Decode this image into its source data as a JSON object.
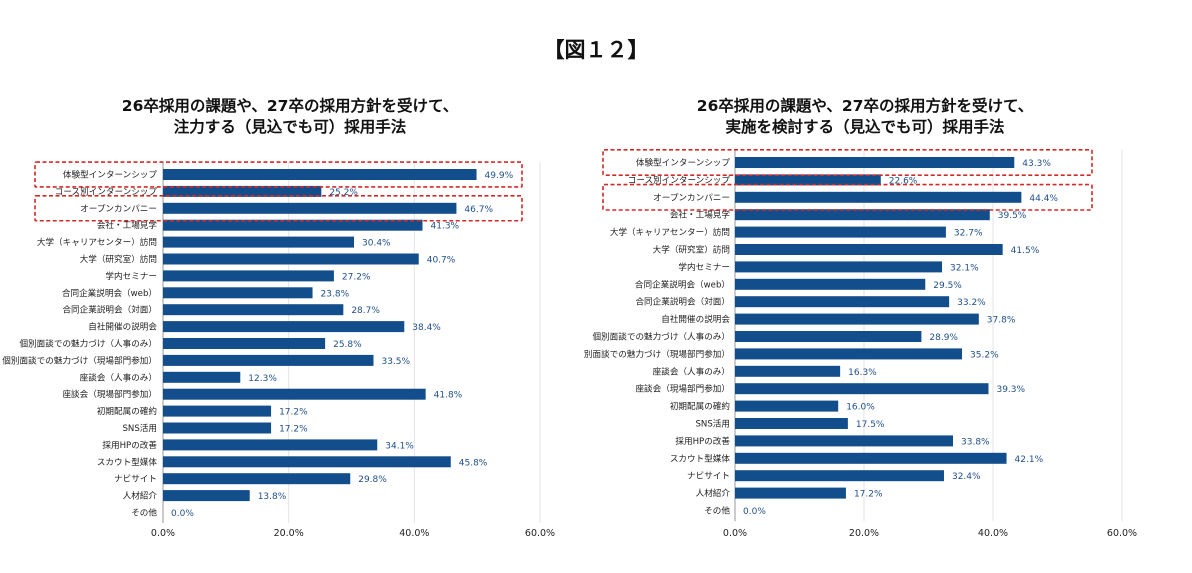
{
  "figure_title": "【図１２】",
  "chart_data": [
    {
      "type": "bar",
      "orientation": "horizontal",
      "title_lines": [
        "26卒採用の課題や、27卒の採用方針を受けて、",
        "注力する（見込でも可）採用手法"
      ],
      "categories": [
        "体験型インターンシップ",
        "コース別インターンシップ",
        "オープンカンパニー",
        "会社・工場見学",
        "大学（キャリアセンター）訪問",
        "大学（研究室）訪問",
        "学内セミナー",
        "合同企業説明会（web）",
        "合同企業説明会（対面）",
        "自社開催の説明会",
        "個別面談での魅力づけ（人事のみ）",
        "個別面談での魅力づけ（現場部門参加）",
        "座談会（人事のみ）",
        "座談会（現場部門参加）",
        "初期配属の確約",
        "SNS活用",
        "採用HPの改善",
        "スカウト型媒体",
        "ナビサイト",
        "人材紹介",
        "その他"
      ],
      "values": [
        49.9,
        25.2,
        46.7,
        41.3,
        30.4,
        40.7,
        27.2,
        23.8,
        28.7,
        38.4,
        25.8,
        33.5,
        12.3,
        41.8,
        17.2,
        17.2,
        34.1,
        45.8,
        29.8,
        13.8,
        0.0
      ],
      "value_labels": [
        "49.9%",
        "25.2%",
        "46.7%",
        "41.3%",
        "30.4%",
        "40.7%",
        "27.2%",
        "23.8%",
        "28.7%",
        "38.4%",
        "25.8%",
        "33.5%",
        "12.3%",
        "41.8%",
        "17.2%",
        "17.2%",
        "34.1%",
        "45.8%",
        "29.8%",
        "13.8%",
        "0.0%"
      ],
      "x_ticks": [
        "0.0%",
        "20.0%",
        "40.0%",
        "60.0%"
      ],
      "xlim": [
        0,
        60
      ],
      "grid": true,
      "highlighted_categories": [
        0,
        2
      ],
      "bar_color": "#134e8c",
      "highlight_color": "#d22a2a"
    },
    {
      "type": "bar",
      "orientation": "horizontal",
      "title_lines": [
        "26卒採用の課題や、27卒の採用方針を受けて、",
        "実施を検討する（見込でも可）採用手法"
      ],
      "categories": [
        "体験型インターンシップ",
        "コース別インターンシップ",
        "オープンカンパニー",
        "会社・工場見学",
        "大学（キャリアセンター）訪問",
        "大学（研究室）訪問",
        "学内セミナー",
        "合同企業説明会（web）",
        "合同企業説明会（対面）",
        "自社開催の説明会",
        "個別面談での魅力づけ（人事のみ）",
        "別面談での魅力づけ（現場部門参加）",
        "座談会（人事のみ）",
        "座談会（現場部門参加）",
        "初期配属の確約",
        "SNS活用",
        "採用HPの改善",
        "スカウト型媒体",
        "ナビサイト",
        "人材紹介",
        "その他"
      ],
      "values": [
        43.3,
        22.6,
        44.4,
        39.5,
        32.7,
        41.5,
        32.1,
        29.5,
        33.2,
        37.8,
        28.9,
        35.2,
        16.3,
        39.3,
        16.0,
        17.5,
        33.8,
        42.1,
        32.4,
        17.2,
        0.0
      ],
      "value_labels": [
        "43.3%",
        "22.6%",
        "44.4%",
        "39.5%",
        "32.7%",
        "41.5%",
        "32.1%",
        "29.5%",
        "33.2%",
        "37.8%",
        "28.9%",
        "35.2%",
        "16.3%",
        "39.3%",
        "16.0%",
        "17.5%",
        "33.8%",
        "42.1%",
        "32.4%",
        "17.2%",
        "0.0%"
      ],
      "x_ticks": [
        "0.0%",
        "20.0%",
        "40.0%",
        "60.0%"
      ],
      "xlim": [
        0,
        60
      ],
      "grid": true,
      "highlighted_categories": [
        0,
        2
      ],
      "bar_color": "#134e8c",
      "highlight_color": "#d22a2a"
    }
  ]
}
